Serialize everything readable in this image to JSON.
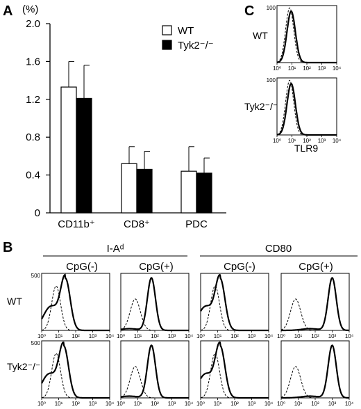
{
  "panels": {
    "a": "A",
    "b": "B",
    "c": "C"
  },
  "chart_data": [
    {
      "type": "bar",
      "panel": "A",
      "yunit": "(%)",
      "categories": [
        "CD11b⁺",
        "CD8⁺",
        "PDC"
      ],
      "series": [
        {
          "name": "WT",
          "color": "#ffffff",
          "values": [
            1.33,
            0.52,
            0.44
          ],
          "errors": [
            0.27,
            0.18,
            0.26
          ]
        },
        {
          "name": "Tyk2⁻/⁻",
          "color": "#000000",
          "values": [
            1.21,
            0.46,
            0.42
          ],
          "errors": [
            0.35,
            0.19,
            0.16
          ]
        }
      ],
      "ylim": [
        0,
        2.0
      ],
      "yticks": [
        "0",
        "0.4",
        "0.8",
        "1.2",
        "1.6",
        "2.0"
      ],
      "legend_position": "top-right"
    },
    {
      "type": "histogram",
      "panel": "B",
      "xscale": "log",
      "xlim": [
        1,
        10000
      ],
      "ylim": [
        0,
        500
      ],
      "y_max_label": "500",
      "x_tick_labels": [
        "10⁰",
        "10¹",
        "10²",
        "10³",
        "10⁴"
      ],
      "marker_groups": [
        {
          "name": "I-Aᵈ",
          "conditions": [
            "CpG(-)",
            "CpG(+)"
          ]
        },
        {
          "name": "CD80",
          "conditions": [
            "CpG(-)",
            "CpG(+)"
          ]
        }
      ],
      "rows": [
        "WT",
        "Tyk2⁻/⁻"
      ],
      "solid_peak_positions_log10": [
        [
          1.4,
          1.8,
          1.15,
          3.0
        ],
        [
          1.3,
          1.8,
          1.15,
          3.0
        ]
      ],
      "dashed_peak_position_log10": 0.85
    },
    {
      "type": "histogram",
      "panel": "C",
      "xscale": "log",
      "xlim": [
        1,
        10000
      ],
      "ylim": [
        0,
        100
      ],
      "y_max_label": "100",
      "x_tick_labels": [
        "10⁰",
        "10¹",
        "10²",
        "10³",
        "10⁴"
      ],
      "xlabel": "TLR9",
      "rows": [
        "WT",
        "Tyk2⁻/⁻"
      ],
      "solid_peak_position_log10": 0.95,
      "dashed_peak_position_log10": 0.85
    }
  ]
}
